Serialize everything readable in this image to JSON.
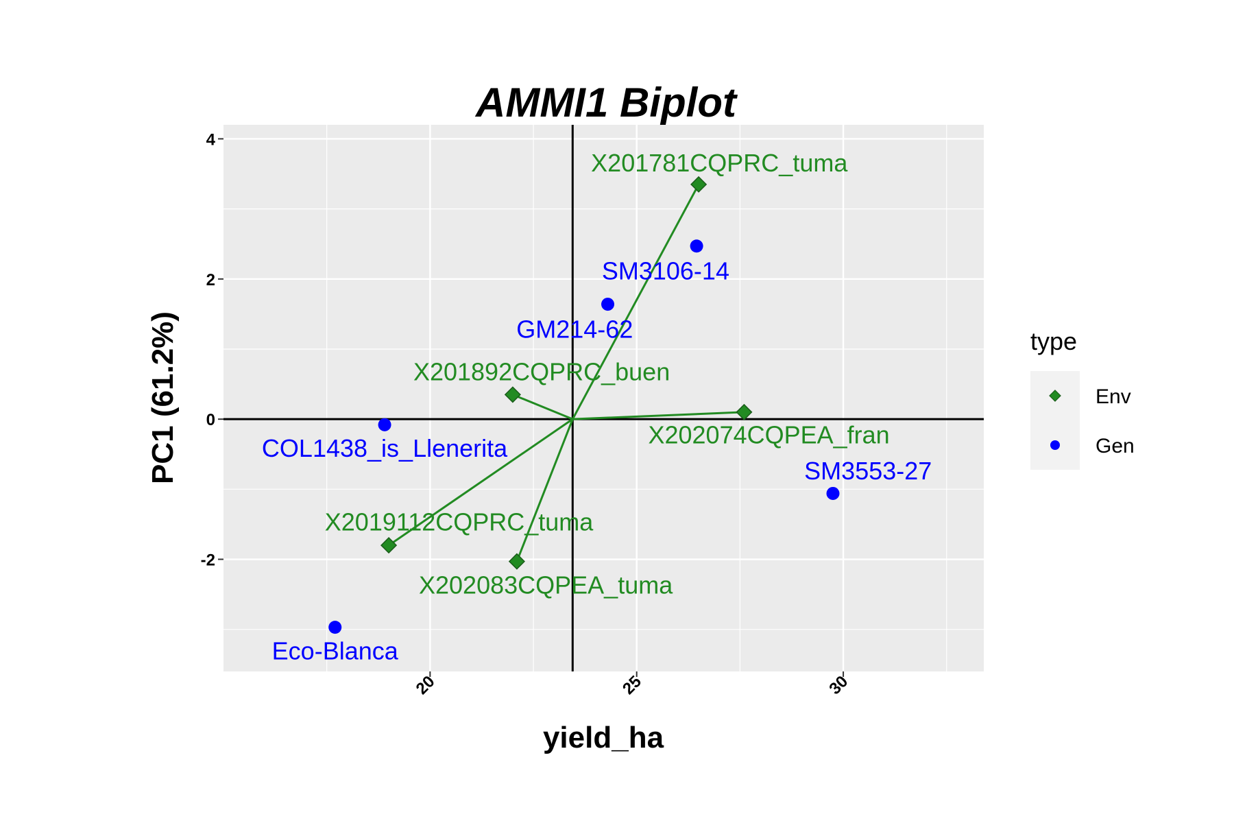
{
  "chart_data": {
    "type": "scatter",
    "title": "AMMI1 Biplot",
    "xlabel": "yield_ha",
    "ylabel": "PC1 (61.2%)",
    "xlim": [
      15,
      33.4
    ],
    "ylim": [
      -3.6,
      4.2
    ],
    "x_ticks": [
      20,
      25,
      30
    ],
    "y_ticks": [
      -2,
      0,
      2,
      4
    ],
    "origin": [
      23.45,
      0
    ],
    "grid": true,
    "legend": {
      "title": "type",
      "placement": "right",
      "entries": [
        {
          "label": "Env",
          "shape": "diamond",
          "color": "#228B22"
        },
        {
          "label": "Gen",
          "shape": "circle",
          "color": "#0000FF"
        }
      ]
    },
    "series": [
      {
        "name": "Env",
        "color": "#228B22",
        "shape": "diamond",
        "points": [
          {
            "label": "X201781CQPRC_tuma",
            "x": 26.5,
            "y": 3.35,
            "label_pos": [
              27.0,
              3.65
            ]
          },
          {
            "label": "X201892CQPRC_buen",
            "x": 22.0,
            "y": 0.35,
            "label_pos": [
              22.7,
              0.67
            ]
          },
          {
            "label": "X202074CQPEA_fran",
            "x": 27.6,
            "y": 0.1,
            "label_pos": [
              28.2,
              -0.23
            ]
          },
          {
            "label": "X2019112CQPRC_tuma",
            "x": 19.0,
            "y": -1.8,
            "label_pos": [
              20.7,
              -1.47
            ]
          },
          {
            "label": "X202083CQPEA_tuma",
            "x": 22.1,
            "y": -2.03,
            "label_pos": [
              22.8,
              -2.37
            ]
          }
        ]
      },
      {
        "name": "Gen",
        "color": "#0000FF",
        "shape": "circle",
        "points": [
          {
            "label": "SM3106-14",
            "x": 26.45,
            "y": 2.47,
            "label_pos": [
              25.7,
              2.11
            ]
          },
          {
            "label": "GM214-62",
            "x": 24.3,
            "y": 1.64,
            "label_pos": [
              23.5,
              1.28
            ]
          },
          {
            "label": "COL1438_is_Llenerita",
            "x": 18.9,
            "y": -0.08,
            "label_pos": [
              18.9,
              -0.42
            ]
          },
          {
            "label": "SM3553-27",
            "x": 29.75,
            "y": -1.06,
            "label_pos": [
              30.6,
              -0.74
            ]
          },
          {
            "label": "Eco-Blanca",
            "x": 17.7,
            "y": -2.97,
            "label_pos": [
              17.7,
              -3.31
            ]
          }
        ]
      }
    ]
  }
}
